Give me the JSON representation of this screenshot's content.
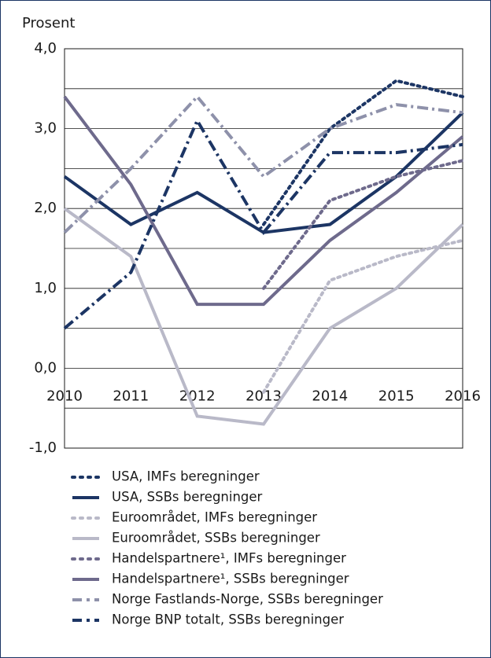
{
  "chart_data": {
    "type": "line",
    "ylabel": "Prosent",
    "x": [
      2010,
      2011,
      2012,
      2013,
      2014,
      2015,
      2016
    ],
    "xlim": [
      2010,
      2016
    ],
    "ylim": [
      -1,
      4
    ],
    "yticks": [
      {
        "value": 4,
        "label": "4,0"
      },
      {
        "value": 3,
        "label": "3,0"
      },
      {
        "value": 2,
        "label": "2,0"
      },
      {
        "value": 1,
        "label": "1,0"
      },
      {
        "value": 0,
        "label": "0,0"
      },
      {
        "value": -1,
        "label": "-1,0"
      }
    ],
    "minor_grid": [
      3.5,
      2.5,
      1.5,
      0.5,
      -0.5
    ],
    "grid": true,
    "series": [
      {
        "name": "USA, IMFs beregninger",
        "color": "#1c3564",
        "style": "dotted",
        "values": [
          null,
          null,
          null,
          1.8,
          3.0,
          3.6,
          3.4
        ]
      },
      {
        "name": "USA, SSBs beregninger",
        "color": "#1c3564",
        "style": "solid",
        "values": [
          2.4,
          1.8,
          2.2,
          1.7,
          1.8,
          2.4,
          3.2
        ]
      },
      {
        "name": "Euroområdet, IMFs beregninger",
        "color": "#b9b9c8",
        "style": "dotted",
        "values": [
          null,
          null,
          null,
          -0.3,
          1.1,
          1.4,
          1.6
        ]
      },
      {
        "name": "Euroområdet, SSBs beregninger",
        "color": "#b9b9c8",
        "style": "solid",
        "values": [
          2.0,
          1.4,
          -0.6,
          -0.7,
          0.5,
          1.0,
          1.8
        ]
      },
      {
        "name": "Handelspartnere¹, IMFs beregninger",
        "color": "#6e6a8c",
        "style": "dotted",
        "values": [
          null,
          null,
          null,
          1.0,
          2.1,
          2.4,
          2.6
        ]
      },
      {
        "name": "Handelspartnere¹, SSBs beregninger",
        "color": "#6e6a8c",
        "style": "solid",
        "values": [
          3.4,
          2.3,
          0.8,
          0.8,
          1.6,
          2.2,
          2.9
        ]
      },
      {
        "name": "Norge Fastlands-Norge, SSBs beregninger",
        "color": "#8e91aa",
        "style": "dashdot",
        "values": [
          1.7,
          2.5,
          3.4,
          2.4,
          3.0,
          3.3,
          3.2
        ]
      },
      {
        "name": "Norge BNP totalt, SSBs beregninger",
        "color": "#1c3564",
        "style": "dashdot",
        "values": [
          0.5,
          1.2,
          3.1,
          1.7,
          2.7,
          2.7,
          2.8
        ]
      }
    ]
  }
}
